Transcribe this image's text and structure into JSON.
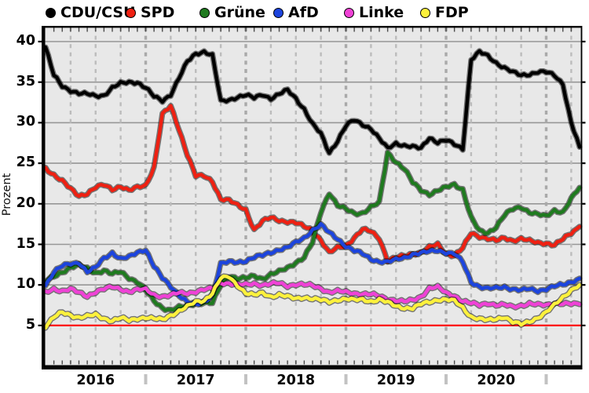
{
  "legend": {
    "items": [
      {
        "label": "CDU/CSU",
        "color": "#000000"
      },
      {
        "label": "SPD",
        "color": "#ee2012"
      },
      {
        "label": "Grüne",
        "color": "#1f7a1f"
      },
      {
        "label": "AfD",
        "color": "#1c44dd"
      },
      {
        "label": "Linke",
        "color": "#ef42d6"
      },
      {
        "label": "FDP",
        "color": "#fdf13c"
      }
    ]
  },
  "axes": {
    "y_label": "Prozent",
    "y_tick_labels": [
      "5",
      "10",
      "15",
      "20",
      "25",
      "30",
      "35",
      "40"
    ],
    "x_tick_labels": [
      "2016",
      "2017",
      "2018",
      "2019",
      "2020"
    ]
  },
  "chart_data": {
    "type": "line",
    "title": "",
    "ylabel": "Prozent",
    "xlabel": "",
    "ylim": [
      0,
      42
    ],
    "y_ticks": [
      5,
      10,
      15,
      20,
      25,
      30,
      35,
      40
    ],
    "x_year_labels": [
      "2016",
      "2017",
      "2018",
      "2019",
      "2020"
    ],
    "x_range": [
      "2016-01",
      "2021-05"
    ],
    "grid": {
      "horizontal": "solid gray every 5",
      "vertical": "dashed gray quarterly",
      "background": "#e8e8e8"
    },
    "threshold_line": {
      "value": 5,
      "color": "#ff0000"
    },
    "legend_position": "top",
    "months": [
      "2016-01",
      "2016-02",
      "2016-03",
      "2016-04",
      "2016-05",
      "2016-06",
      "2016-07",
      "2016-08",
      "2016-09",
      "2016-10",
      "2016-11",
      "2016-12",
      "2017-01",
      "2017-02",
      "2017-03",
      "2017-04",
      "2017-05",
      "2017-06",
      "2017-07",
      "2017-08",
      "2017-09",
      "2017-10",
      "2017-11",
      "2017-12",
      "2018-01",
      "2018-02",
      "2018-03",
      "2018-04",
      "2018-05",
      "2018-06",
      "2018-07",
      "2018-08",
      "2018-09",
      "2018-10",
      "2018-11",
      "2018-12",
      "2019-01",
      "2019-02",
      "2019-03",
      "2019-04",
      "2019-05",
      "2019-06",
      "2019-07",
      "2019-08",
      "2019-09",
      "2019-10",
      "2019-11",
      "2019-12",
      "2020-01",
      "2020-02",
      "2020-03",
      "2020-04",
      "2020-05",
      "2020-06",
      "2020-07",
      "2020-08",
      "2020-09",
      "2020-10",
      "2020-11",
      "2020-12",
      "2021-01",
      "2021-02",
      "2021-03",
      "2021-04",
      "2021-05"
    ],
    "series": [
      {
        "name": "CDU/CSU",
        "color": "#000000",
        "values": [
          39.3,
          35.8,
          34.5,
          34.0,
          33.6,
          33.5,
          33.3,
          33.4,
          34.3,
          34.8,
          35.0,
          35.0,
          34.3,
          33.2,
          32.7,
          33.5,
          35.5,
          37.5,
          38.5,
          38.8,
          38.3,
          32.6,
          32.8,
          33.2,
          33.4,
          33.0,
          33.5,
          33.0,
          33.5,
          34.0,
          33.0,
          31.7,
          29.8,
          28.6,
          26.3,
          27.8,
          29.6,
          30.3,
          29.8,
          29.3,
          28.0,
          26.8,
          27.5,
          27.2,
          27.0,
          26.8,
          28.2,
          27.6,
          27.8,
          27.3,
          26.8,
          37.8,
          38.7,
          38.2,
          37.4,
          36.8,
          36.2,
          35.8,
          36.0,
          36.3,
          36.2,
          35.8,
          34.8,
          30.0,
          27.0
        ]
      },
      {
        "name": "SPD",
        "color": "#ee2012",
        "values": [
          24.4,
          23.6,
          22.8,
          21.8,
          21.0,
          21.3,
          22.0,
          22.3,
          21.8,
          22.2,
          21.6,
          22.0,
          22.3,
          24.5,
          31.0,
          32.0,
          29.2,
          26.1,
          23.4,
          23.4,
          22.8,
          20.6,
          20.4,
          19.8,
          19.3,
          16.8,
          17.8,
          18.3,
          18.0,
          17.8,
          17.6,
          17.2,
          16.8,
          15.5,
          13.9,
          14.6,
          14.9,
          15.8,
          16.8,
          16.6,
          15.8,
          13.0,
          13.3,
          13.6,
          13.9,
          14.0,
          14.6,
          15.0,
          13.9,
          13.6,
          14.5,
          16.4,
          16.0,
          15.7,
          15.4,
          15.8,
          15.5,
          15.7,
          15.4,
          15.2,
          15.2,
          14.9,
          15.6,
          16.4,
          17.2
        ]
      },
      {
        "name": "Grüne",
        "color": "#1f7a1f",
        "values": [
          10.4,
          11.0,
          11.6,
          12.2,
          12.4,
          12.0,
          11.5,
          11.8,
          11.3,
          11.6,
          10.9,
          10.4,
          9.3,
          8.0,
          7.2,
          6.9,
          7.2,
          7.4,
          7.8,
          7.8,
          7.7,
          10.0,
          11.2,
          10.8,
          10.8,
          11.1,
          10.8,
          11.3,
          11.6,
          12.1,
          12.8,
          13.4,
          15.2,
          19.0,
          21.4,
          19.8,
          19.3,
          18.8,
          18.9,
          19.6,
          20.1,
          26.3,
          25.2,
          24.3,
          22.6,
          21.7,
          21.2,
          21.6,
          22.0,
          22.4,
          21.8,
          18.3,
          16.6,
          16.4,
          17.2,
          18.6,
          19.3,
          19.6,
          19.0,
          18.7,
          18.4,
          19.2,
          19.0,
          20.6,
          22.0
        ]
      },
      {
        "name": "AfD",
        "color": "#1c44dd",
        "values": [
          10.0,
          11.6,
          12.3,
          12.6,
          12.8,
          11.6,
          12.1,
          13.3,
          14.0,
          13.2,
          13.4,
          14.0,
          14.4,
          12.3,
          10.8,
          9.8,
          8.8,
          7.9,
          7.5,
          7.9,
          8.8,
          12.6,
          12.8,
          12.8,
          13.0,
          13.4,
          13.6,
          14.0,
          14.4,
          14.6,
          15.2,
          15.8,
          16.8,
          17.4,
          16.4,
          15.7,
          14.8,
          14.2,
          13.8,
          13.2,
          12.9,
          12.8,
          13.1,
          13.4,
          13.8,
          13.9,
          14.1,
          14.3,
          14.0,
          13.8,
          12.8,
          10.4,
          9.8,
          9.5,
          9.6,
          9.8,
          9.5,
          9.3,
          9.5,
          9.3,
          9.5,
          9.8,
          10.0,
          10.4,
          10.8
        ]
      },
      {
        "name": "Linke",
        "color": "#ef42d6",
        "values": [
          9.0,
          9.5,
          9.3,
          9.5,
          9.0,
          8.6,
          9.2,
          9.5,
          9.7,
          9.5,
          9.2,
          9.4,
          9.4,
          8.8,
          8.6,
          8.7,
          9.0,
          9.0,
          9.2,
          9.4,
          9.5,
          10.3,
          10.2,
          10.0,
          10.0,
          10.2,
          10.0,
          10.1,
          10.2,
          9.9,
          10.1,
          10.0,
          9.9,
          9.6,
          9.1,
          9.2,
          9.1,
          9.0,
          8.9,
          8.8,
          8.6,
          8.3,
          8.1,
          7.9,
          8.1,
          8.6,
          9.6,
          9.7,
          9.0,
          8.7,
          8.0,
          7.7,
          7.5,
          7.8,
          7.5,
          7.5,
          7.3,
          7.5,
          7.7,
          7.5,
          7.5,
          7.8,
          7.7,
          7.6,
          7.6
        ]
      },
      {
        "name": "FDP",
        "color": "#fdf13c",
        "values": [
          4.9,
          6.0,
          6.6,
          6.3,
          6.0,
          6.1,
          6.3,
          5.9,
          5.6,
          5.9,
          5.6,
          5.9,
          6.0,
          5.8,
          5.7,
          6.3,
          6.8,
          7.3,
          7.9,
          8.1,
          9.0,
          10.8,
          11.0,
          10.0,
          9.0,
          8.7,
          9.0,
          8.6,
          8.8,
          8.5,
          8.3,
          8.5,
          8.3,
          8.1,
          7.9,
          8.2,
          8.3,
          8.1,
          8.2,
          8.0,
          8.2,
          7.8,
          7.4,
          7.2,
          7.1,
          7.6,
          7.9,
          8.2,
          8.2,
          8.0,
          7.2,
          6.1,
          5.8,
          5.6,
          5.8,
          6.1,
          5.4,
          5.1,
          5.5,
          6.0,
          6.6,
          7.5,
          8.5,
          9.4,
          10.0
        ]
      }
    ]
  }
}
